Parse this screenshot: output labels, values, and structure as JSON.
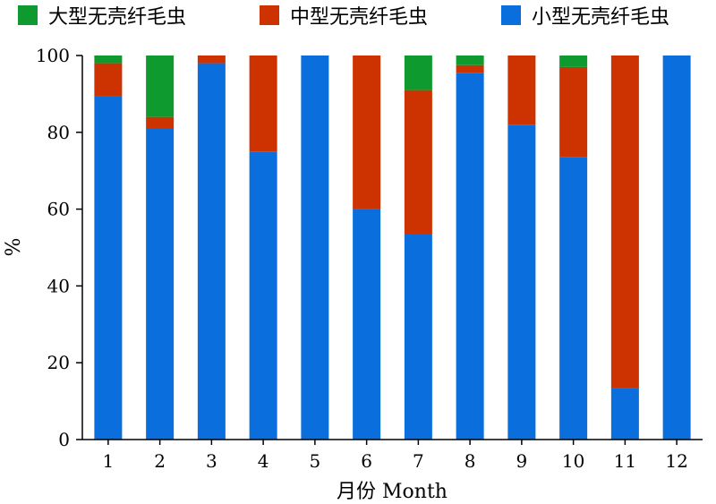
{
  "chart_data": {
    "type": "bar",
    "stacked": true,
    "categories": [
      "1",
      "2",
      "3",
      "4",
      "5",
      "6",
      "7",
      "8",
      "9",
      "10",
      "11",
      "12"
    ],
    "series": [
      {
        "name": "小型无壳纤毛虫",
        "color": "#0a6fdc",
        "values": [
          89.5,
          81,
          98,
          75,
          100,
          60,
          53.5,
          95.5,
          82,
          73.5,
          13.5,
          100
        ]
      },
      {
        "name": "中型无壳纤毛虫",
        "color": "#cc3300",
        "values": [
          8.5,
          3,
          2,
          25,
          0,
          40,
          37.5,
          2,
          18,
          23.5,
          86.5,
          0
        ]
      },
      {
        "name": "大型无壳纤毛虫",
        "color": "#0f9a2f",
        "values": [
          2,
          16,
          0,
          0,
          0,
          0,
          9,
          2.5,
          0,
          3,
          0,
          0
        ]
      }
    ],
    "legend_order": [
      2,
      1,
      0
    ],
    "legend_position": "top",
    "xlabel": "月份 Month",
    "ylabel": "%",
    "ylim": [
      0,
      100
    ],
    "yticks": [
      0,
      20,
      40,
      60,
      80,
      100
    ],
    "grid": false
  }
}
